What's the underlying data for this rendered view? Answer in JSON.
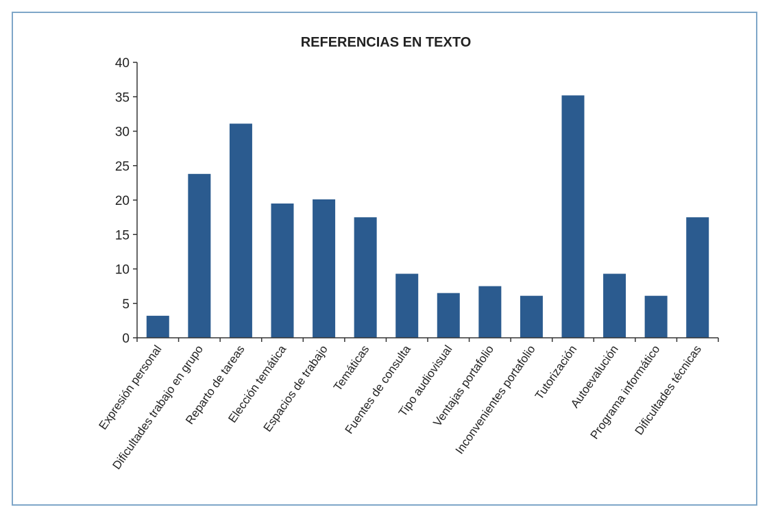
{
  "chart_data": {
    "type": "bar",
    "title": "REFERENCIAS EN TEXTO",
    "xlabel": "",
    "ylabel": "",
    "ylim": [
      0,
      40
    ],
    "yticks": [
      0,
      5,
      10,
      15,
      20,
      25,
      30,
      35,
      40
    ],
    "grid": false,
    "legend": "none",
    "bar_color": "#2b5b8f",
    "categories": [
      "Expresión personal",
      "Dificultades trabajo en grupo",
      "Reparto de tareas",
      "Elección temática",
      "Espacios de trabajo",
      "Temáticas",
      "Fuentes de consulta",
      "Tipo audiovisual",
      "Ventajas portafolio",
      "Inconvenientes portafolio",
      "Tutorización",
      "Autoevalución",
      "Programa informático",
      "Dificultades técnicas"
    ],
    "values": [
      3.2,
      23.8,
      31.1,
      19.5,
      20.1,
      17.5,
      9.3,
      6.5,
      7.5,
      6.1,
      35.2,
      9.3,
      6.1,
      17.5
    ]
  }
}
